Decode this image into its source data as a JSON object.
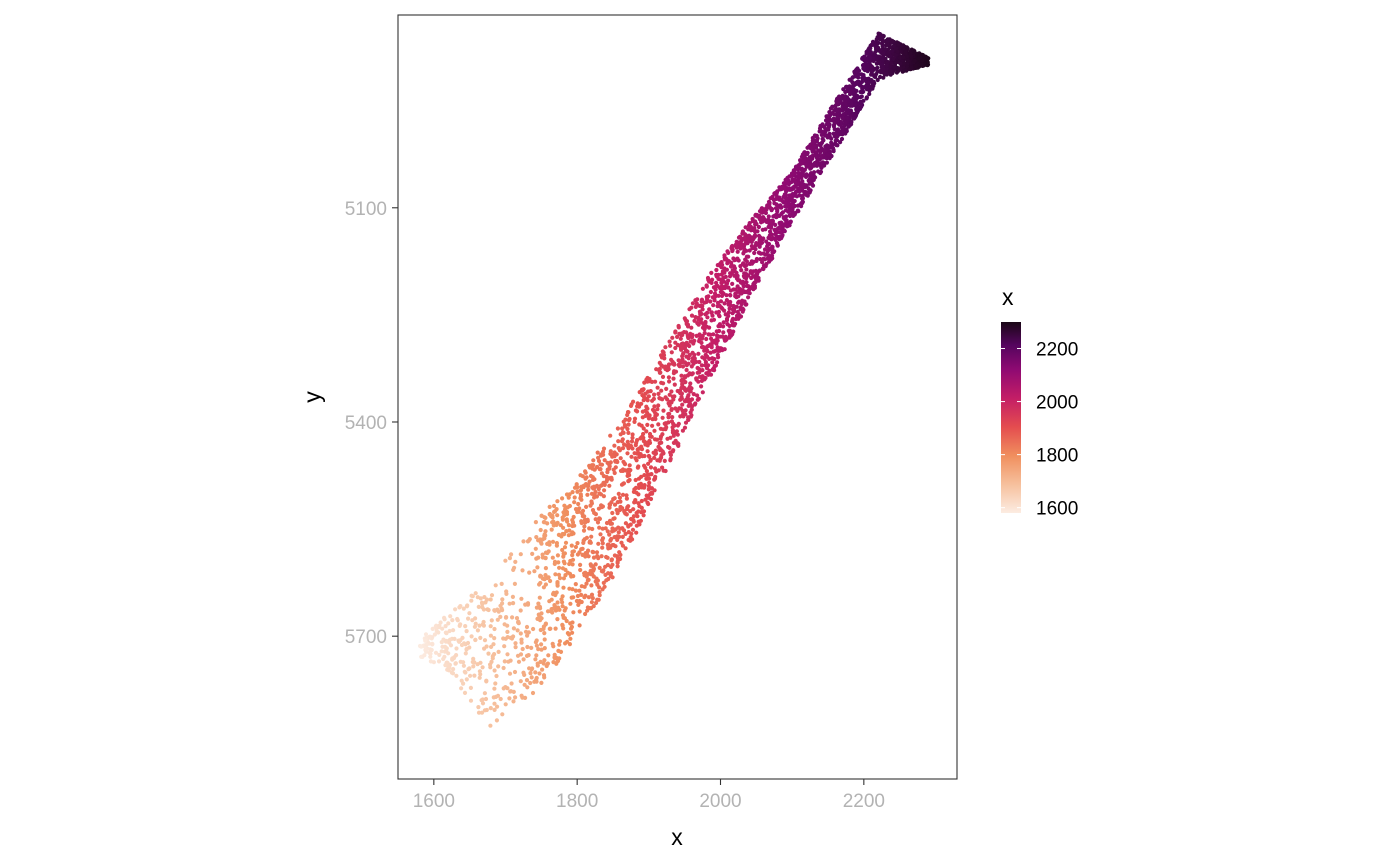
{
  "chart_data": {
    "type": "scatter",
    "xlabel": "x",
    "ylabel": "y",
    "xlim": [
      1550,
      2330
    ],
    "ylim": [
      4830,
      5900
    ],
    "y_reversed": true,
    "x_ticks": [
      1600,
      1800,
      2000,
      2200
    ],
    "y_ticks": [
      5100,
      5400,
      5700
    ],
    "grid": false,
    "color_by": "x",
    "colorbar": {
      "title": "x",
      "ticks": [
        1600,
        1800,
        2000,
        2200
      ],
      "range": [
        1580,
        2300
      ],
      "palette": [
        "#fcece2",
        "#f6c09d",
        "#f08f5e",
        "#e44d4f",
        "#c41e66",
        "#8f0a72",
        "#55055e",
        "#1a0716"
      ],
      "position": "right"
    },
    "band": {
      "description_points": "dense point cloud along a diagonal band",
      "axis_x": [
        1580,
        1620,
        1680,
        1740,
        1800,
        1860,
        1920,
        1980,
        2040,
        2100,
        2160,
        2220,
        2290
      ],
      "lower_y": [
        5730,
        5750,
        5830,
        5780,
        5700,
        5600,
        5480,
        5350,
        5230,
        5120,
        5020,
        4920,
        4900
      ],
      "upper_y": [
        5700,
        5670,
        5620,
        5540,
        5480,
        5400,
        5300,
        5200,
        5120,
        5050,
        4950,
        4855,
        4890
      ]
    },
    "n_points": 3600
  }
}
